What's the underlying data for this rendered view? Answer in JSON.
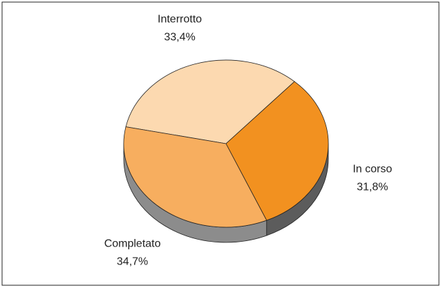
{
  "chart_data": {
    "type": "pie",
    "categories": [
      "Interrotto",
      "Completato",
      "In corso"
    ],
    "values": [
      33.4,
      34.7,
      31.8
    ],
    "value_labels": [
      "33,4%",
      "34,7%",
      "31,8%"
    ],
    "colors": [
      "#fcd9b0",
      "#f7ae5f",
      "#f29120"
    ]
  }
}
